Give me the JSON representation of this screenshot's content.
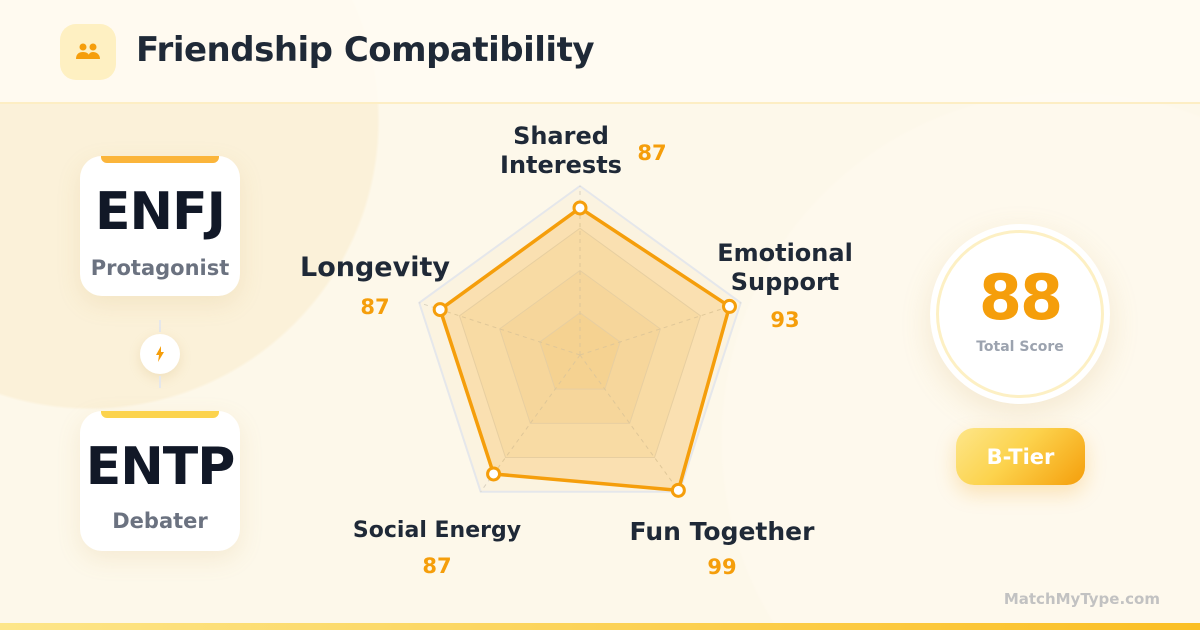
{
  "header": {
    "title": "Friendship Compatibility",
    "icon": "users-icon"
  },
  "types": [
    {
      "code": "ENFJ",
      "nickname": "Protagonist"
    },
    {
      "code": "ENTP",
      "nickname": "Debater"
    }
  ],
  "connector_icon": "lightning-bolt-icon",
  "chart_data": {
    "type": "radar",
    "max": 100,
    "categories": [
      "Shared Interests",
      "Emotional Support",
      "Fun Together",
      "Social Energy",
      "Longevity"
    ],
    "values": [
      87,
      93,
      99,
      87,
      87
    ],
    "value_labels": [
      "87",
      "93",
      "99",
      "87",
      "87"
    ],
    "grid": true,
    "color": "#f59e0b"
  },
  "score": {
    "value": "88",
    "label": "Total Score"
  },
  "tier": "B-Tier",
  "brand": "MatchMyType.com",
  "colors": {
    "accent": "#f59e0b",
    "text": "#1f2937"
  }
}
